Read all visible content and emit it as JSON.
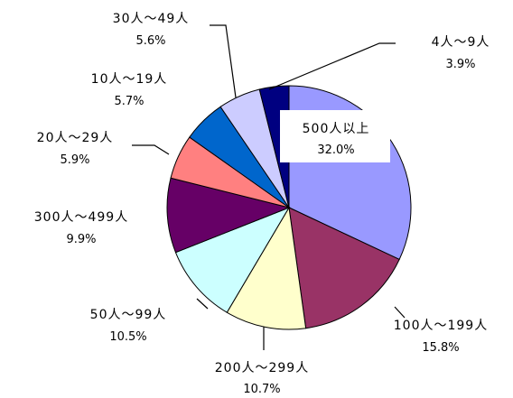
{
  "chart_data": {
    "type": "pie",
    "title": "",
    "start_angle_deg": 0,
    "direction": "clockwise",
    "slices": [
      {
        "label": "500人以上",
        "percent_text": "32.0%",
        "value": 32.0,
        "color": "#9999ff"
      },
      {
        "label": "100人～199人",
        "percent_text": "15.8%",
        "value": 15.8,
        "color": "#993366"
      },
      {
        "label": "200人～299人",
        "percent_text": "10.7%",
        "value": 10.7,
        "color": "#ffffcc"
      },
      {
        "label": "50人～99人",
        "percent_text": "10.5%",
        "value": 10.5,
        "color": "#ccffff"
      },
      {
        "label": "300人～499人",
        "percent_text": "9.9%",
        "value": 9.9,
        "color": "#660066"
      },
      {
        "label": "20人～29人",
        "percent_text": "5.9%",
        "value": 5.9,
        "color": "#ff8080"
      },
      {
        "label": "10人～19人",
        "percent_text": "5.7%",
        "value": 5.7,
        "color": "#0066cc"
      },
      {
        "label": "30人～49人",
        "percent_text": "5.6%",
        "value": 5.6,
        "color": "#ccccff"
      },
      {
        "label": "4人～9人",
        "percent_text": "3.9%",
        "value": 3.9,
        "color": "#000080"
      }
    ]
  }
}
